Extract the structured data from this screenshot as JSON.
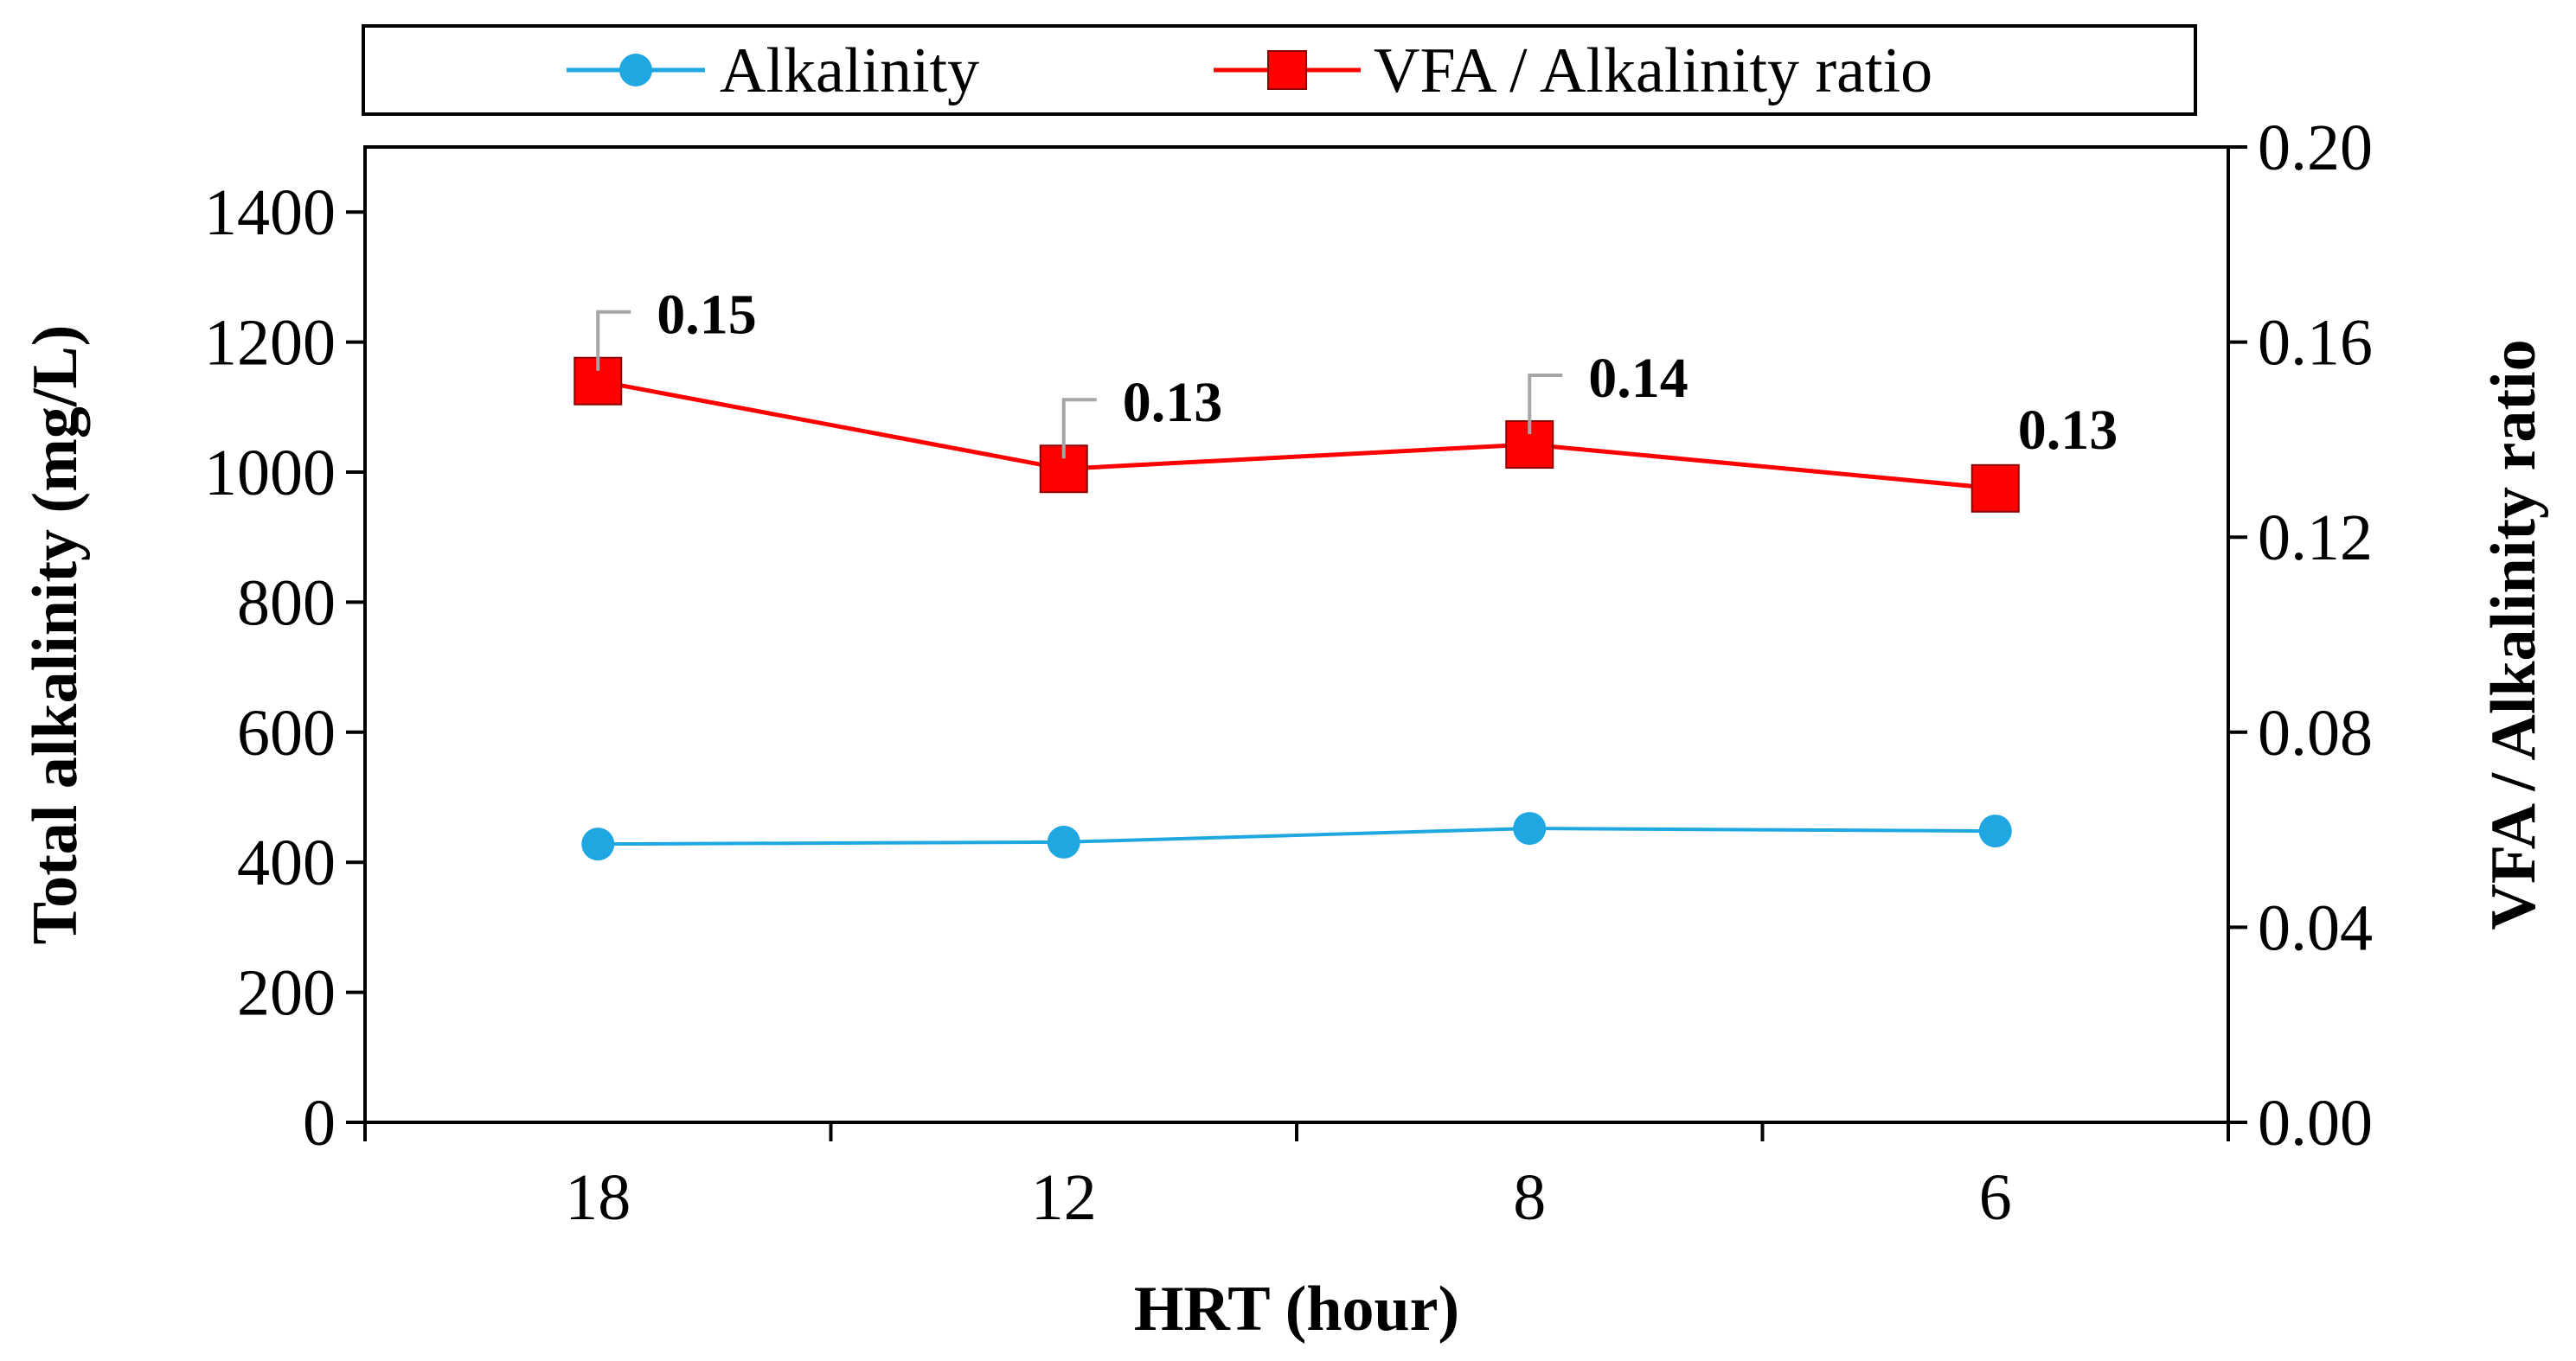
{
  "chart_data": {
    "type": "line",
    "categories": [
      "18",
      "12",
      "8",
      "6"
    ],
    "xlabel": "HRT (hour)",
    "ylabel_left": "Total alkalinity (mg/L)",
    "ylabel_right": "VFA / Alkalinity ratio",
    "ylim_left": [
      0,
      1500
    ],
    "yticks_left": [
      "0",
      "200",
      "400",
      "600",
      "800",
      "1000",
      "1200",
      "1400"
    ],
    "ylim_right": [
      0,
      0.2
    ],
    "yticks_right": [
      "0.00",
      "0.04",
      "0.08",
      "0.12",
      "0.16",
      "0.20"
    ],
    "legend_position": "top",
    "series": [
      {
        "name": "Alkalinity",
        "axis": "left",
        "color": "#1FA7E1",
        "marker": "circle",
        "values": [
          428,
          431,
          452,
          448
        ]
      },
      {
        "name": "VFA / Alkalinity ratio",
        "axis": "right",
        "color": "#FF0000",
        "marker": "square",
        "values": [
          0.152,
          0.134,
          0.139,
          0.13
        ],
        "labels": [
          "0.15",
          "0.13",
          "0.14",
          "0.13"
        ]
      }
    ]
  }
}
